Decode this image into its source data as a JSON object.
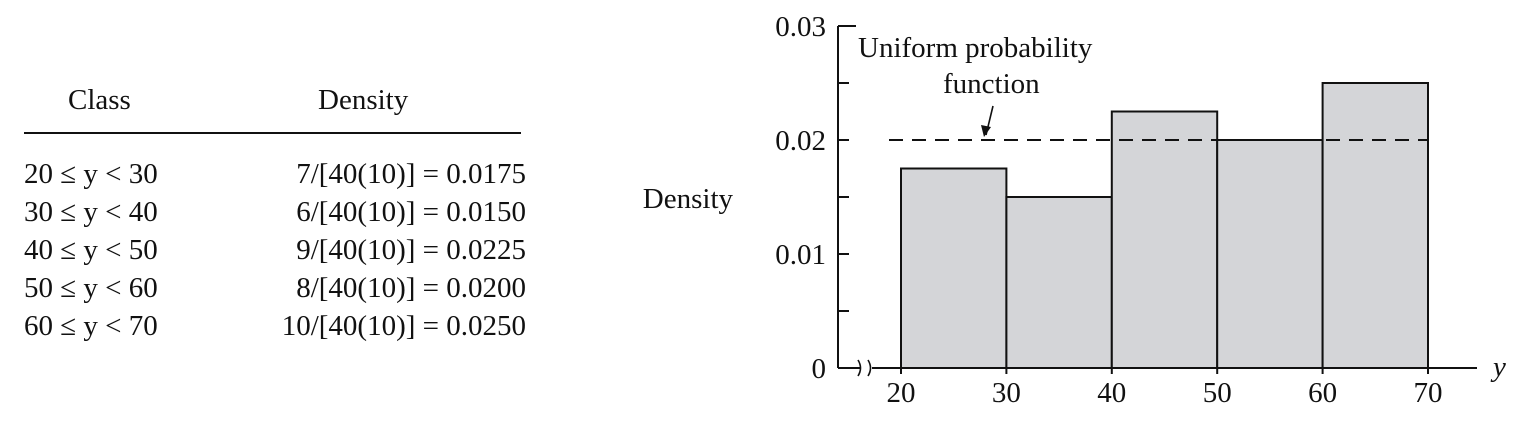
{
  "table": {
    "headers": {
      "class": "Class",
      "density": "Density"
    },
    "rows": [
      {
        "class": "20 ≤ y < 30",
        "density": "7/[40(10)] = 0.0175"
      },
      {
        "class": "30 ≤ y < 40",
        "density": "6/[40(10)] = 0.0150"
      },
      {
        "class": "40 ≤ y < 50",
        "density": "9/[40(10)] = 0.0225"
      },
      {
        "class": "50 ≤ y < 60",
        "density": "8/[40(10)] = 0.0200"
      },
      {
        "class": "60 ≤ y < 70",
        "density": "10/[40(10)] = 0.0250"
      }
    ]
  },
  "chart_data": {
    "type": "bar",
    "bins": [
      [
        20,
        30
      ],
      [
        30,
        40
      ],
      [
        40,
        50
      ],
      [
        50,
        60
      ],
      [
        60,
        70
      ]
    ],
    "values": [
      0.0175,
      0.015,
      0.0225,
      0.02,
      0.025
    ],
    "xticks": [
      "20",
      "30",
      "40",
      "50",
      "60",
      "70"
    ],
    "yticks": [
      "0",
      "0.01",
      "0.02",
      "0.03"
    ],
    "xlim": [
      20,
      70
    ],
    "ylim": [
      0,
      0.03
    ],
    "xlabel": "y",
    "ylabel": "Density",
    "reference_line": {
      "value": 0.02,
      "style": "dashed"
    },
    "annotation": [
      "Uniform probability",
      "function"
    ],
    "axis_break": true,
    "bar_color": "#d4d5d8",
    "edge_color": "#111111"
  }
}
